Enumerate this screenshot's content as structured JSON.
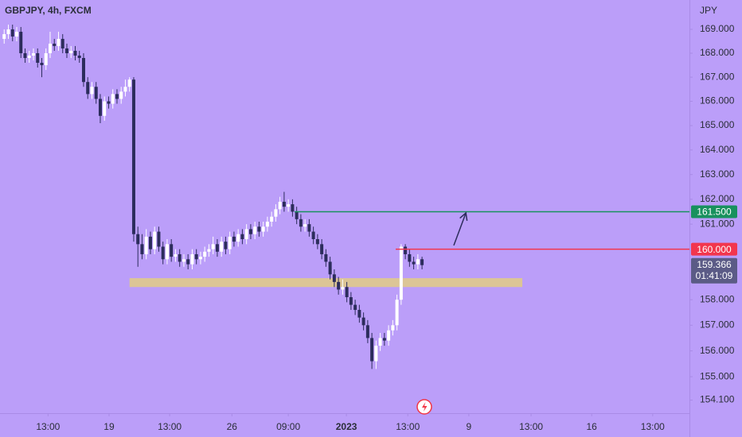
{
  "chart_data": {
    "type": "candlestick",
    "title": "GBPJPY, 4h, FXCM",
    "y_axis_label": "JPY",
    "log_scale": true,
    "background": "#bb9ef9",
    "up_color": "#ffffff",
    "down_color": "#2c2c5c",
    "xlim": [
      -1,
      164
    ],
    "ylim": [
      153.6,
      170.24
    ],
    "xticks": [
      {
        "value": 10.5,
        "label": "13:00"
      },
      {
        "value": 25.1,
        "label": "19"
      },
      {
        "value": 39.6,
        "label": "13:00"
      },
      {
        "value": 54.5,
        "label": "26"
      },
      {
        "value": 68,
        "label": "09:00"
      },
      {
        "value": 81.9,
        "label": "2023"
      },
      {
        "value": 96.6,
        "label": "13:00"
      },
      {
        "value": 111.2,
        "label": "9"
      },
      {
        "value": 126.1,
        "label": "13:00"
      },
      {
        "value": 140.6,
        "label": "16"
      },
      {
        "value": 155.2,
        "label": "13:00"
      }
    ],
    "yticks": [
      {
        "value": 169,
        "label": "169.000"
      },
      {
        "value": 168,
        "label": "168.000"
      },
      {
        "value": 167,
        "label": "167.000"
      },
      {
        "value": 166,
        "label": "166.000"
      },
      {
        "value": 165,
        "label": "165.000"
      },
      {
        "value": 164,
        "label": "164.000"
      },
      {
        "value": 163,
        "label": "163.000"
      },
      {
        "value": 162,
        "label": "162.000"
      },
      {
        "value": 161,
        "label": "161.000"
      },
      {
        "value": 158,
        "label": "158.000"
      },
      {
        "value": 157,
        "label": "157.000"
      },
      {
        "value": 156,
        "label": "156.000"
      },
      {
        "value": 155,
        "label": "155.000"
      },
      {
        "value": 154.1,
        "label": "154.100"
      }
    ],
    "open": [
      168.6,
      168.8,
      169.0,
      168.7,
      168.9,
      168.0,
      167.8,
      167.9,
      168.0,
      167.6,
      167.5,
      168.0,
      168.4,
      168.3,
      168.6,
      168.2,
      168.0,
      168.1,
      167.9,
      167.8,
      166.8,
      166.3,
      166.6,
      166.1,
      165.4,
      166.0,
      165.9,
      166.3,
      166.1,
      166.4,
      166.6,
      166.9,
      160.6,
      160.2,
      159.8,
      160.5,
      160.0,
      160.7,
      160.1,
      159.6,
      160.2,
      159.7,
      159.8,
      159.5,
      159.6,
      159.4,
      159.8,
      159.6,
      159.7,
      159.9,
      160.0,
      160.2,
      159.9,
      160.3,
      160.0,
      160.5,
      160.3,
      160.6,
      160.4,
      160.8,
      160.6,
      160.9,
      160.7,
      160.9,
      161.1,
      161.3,
      161.6,
      161.9,
      161.7,
      161.8,
      161.5,
      161.2,
      160.9,
      161.0,
      160.7,
      160.4,
      160.2,
      159.8,
      159.5,
      159.0,
      158.7,
      158.4,
      158.5,
      158.1,
      157.8,
      157.6,
      157.3,
      157.0,
      156.5,
      155.6,
      156.2,
      156.5,
      156.4,
      156.8,
      157.0,
      158.0,
      160.1,
      159.8,
      159.5,
      159.4,
      159.6
    ],
    "high": [
      169.0,
      169.2,
      169.2,
      169.1,
      169.1,
      168.2,
      168.1,
      168.2,
      168.2,
      167.8,
      168.2,
      168.9,
      168.6,
      168.9,
      168.8,
      168.4,
      168.3,
      168.3,
      168.1,
      168.0,
      167.0,
      166.8,
      166.8,
      166.3,
      166.2,
      166.2,
      166.5,
      166.5,
      166.6,
      166.9,
      167.0,
      167.0,
      160.9,
      160.6,
      160.8,
      160.7,
      160.9,
      160.9,
      160.3,
      160.4,
      160.4,
      160.0,
      160.0,
      159.8,
      159.8,
      160.0,
      160.0,
      159.9,
      160.1,
      160.2,
      160.5,
      160.4,
      160.5,
      160.5,
      160.7,
      160.7,
      160.8,
      160.8,
      161.0,
      161.0,
      161.1,
      161.1,
      161.1,
      161.3,
      161.5,
      161.8,
      162.1,
      162.3,
      162.0,
      162.0,
      161.7,
      161.4,
      161.2,
      161.2,
      160.9,
      160.6,
      160.4,
      160.0,
      159.7,
      159.2,
      158.9,
      158.8,
      158.7,
      158.3,
      158.0,
      157.8,
      157.5,
      157.2,
      156.7,
      156.4,
      156.7,
      156.7,
      157.0,
      157.2,
      158.2,
      160.2,
      160.2,
      160.0,
      159.7,
      159.8,
      159.7
    ],
    "low": [
      168.4,
      168.6,
      168.5,
      168.5,
      167.8,
      167.6,
      167.6,
      167.7,
      167.4,
      167.0,
      167.3,
      167.8,
      168.1,
      168.1,
      168.0,
      167.8,
      167.8,
      167.7,
      167.6,
      166.6,
      166.1,
      166.1,
      165.9,
      165.1,
      165.2,
      165.7,
      165.7,
      165.9,
      165.9,
      166.2,
      166.4,
      160.3,
      159.3,
      159.6,
      159.6,
      159.8,
      159.8,
      159.9,
      159.4,
      159.4,
      159.5,
      159.5,
      159.3,
      159.3,
      159.2,
      159.2,
      159.4,
      159.4,
      159.5,
      159.7,
      159.8,
      159.7,
      159.7,
      159.8,
      159.8,
      160.1,
      160.1,
      160.2,
      160.2,
      160.4,
      160.4,
      160.5,
      160.5,
      160.7,
      160.9,
      161.1,
      161.4,
      161.5,
      161.5,
      161.3,
      161.0,
      160.7,
      160.7,
      160.5,
      160.2,
      160.0,
      159.6,
      159.3,
      158.8,
      158.5,
      158.2,
      158.2,
      157.9,
      157.6,
      157.4,
      157.1,
      156.8,
      156.3,
      155.3,
      155.3,
      156.0,
      156.2,
      156.2,
      156.6,
      156.8,
      157.8,
      159.6,
      159.3,
      159.2,
      159.2,
      159.2
    ],
    "close": [
      168.8,
      169.0,
      168.7,
      168.9,
      168.0,
      167.8,
      167.9,
      168.0,
      167.6,
      167.5,
      168.0,
      168.4,
      168.3,
      168.6,
      168.2,
      168.0,
      168.1,
      167.9,
      167.8,
      166.8,
      166.3,
      166.6,
      166.1,
      165.4,
      166.0,
      165.9,
      166.3,
      166.1,
      166.4,
      166.6,
      166.9,
      160.6,
      160.2,
      159.8,
      160.5,
      160.0,
      160.7,
      160.1,
      159.6,
      160.2,
      159.7,
      159.8,
      159.5,
      159.6,
      159.4,
      159.8,
      159.6,
      159.7,
      159.9,
      160.0,
      160.2,
      159.9,
      160.3,
      160.0,
      160.5,
      160.3,
      160.6,
      160.4,
      160.8,
      160.6,
      160.9,
      160.7,
      160.9,
      161.1,
      161.3,
      161.6,
      161.9,
      161.7,
      161.8,
      161.5,
      161.2,
      160.9,
      161.0,
      160.7,
      160.4,
      160.2,
      159.8,
      159.5,
      159.0,
      158.7,
      158.4,
      158.5,
      158.1,
      157.8,
      157.6,
      157.3,
      157.0,
      156.5,
      155.6,
      156.2,
      156.5,
      156.4,
      156.8,
      157.0,
      158.0,
      160.1,
      159.8,
      159.5,
      159.4,
      159.6,
      159.366
    ],
    "levels": [
      {
        "value": 161.5,
        "label": "161.500",
        "start": 69.5,
        "color": "#18915e"
      },
      {
        "value": 160,
        "label": "160.000",
        "start": 93.7,
        "color": "#f2364d"
      }
    ],
    "zone": {
      "low": 158.5,
      "high": 158.85,
      "start": 30,
      "end": 124,
      "color": "#dcc596"
    },
    "arrow": {
      "from": [
        107.6,
        160.15
      ],
      "to": [
        110.5,
        161.45
      ],
      "color": "#2c2c5c"
    },
    "last_price": {
      "value": 159.366,
      "label": "159.366",
      "countdown": "01:41:09",
      "color": "#5b5b86"
    }
  }
}
